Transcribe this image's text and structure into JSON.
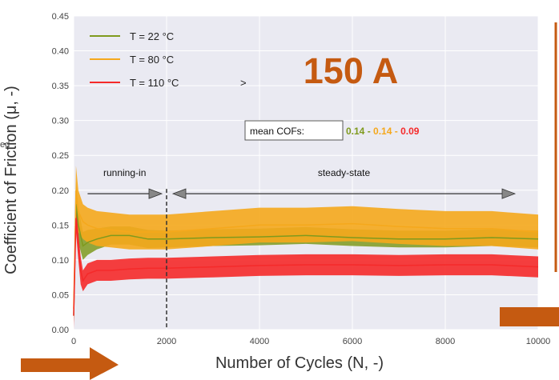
{
  "chart_data": {
    "type": "line",
    "title": "150 A",
    "xlabel": "Number of Cycles (N, -)",
    "ylabel": "Coefficient of Friction (μ, -)",
    "ylabel_fragment": "ed",
    "xlim": [
      0,
      10000
    ],
    "ylim": [
      0,
      0.45
    ],
    "x_ticks": [
      0,
      2000,
      4000,
      6000,
      8000,
      10000
    ],
    "x_tick_labels": [
      "0",
      "2000",
      "4000",
      "6000",
      "8000",
      "10000"
    ],
    "y_ticks": [
      0,
      0.05,
      0.1,
      0.15,
      0.2,
      0.25,
      0.3,
      0.35,
      0.4,
      0.45
    ],
    "y_tick_labels": [
      "0.00",
      "0.05",
      "0.10",
      "0.15",
      "0.20",
      "0.25",
      "0.30",
      "0.35",
      "0.40",
      "0.45"
    ],
    "grid": true,
    "legend_position": "top-left",
    "series": [
      {
        "name": "T = 22 °C",
        "color": "#7f9a1e",
        "x": [
          0,
          50,
          100,
          200,
          300,
          500,
          800,
          1200,
          1600,
          2000,
          3000,
          4000,
          5000,
          6000,
          7000,
          8000,
          9000,
          10000
        ],
        "y": [
          0.02,
          0.18,
          0.15,
          0.12,
          0.125,
          0.13,
          0.135,
          0.135,
          0.13,
          0.13,
          0.132,
          0.133,
          0.135,
          0.132,
          0.13,
          0.13,
          0.132,
          0.13
        ],
        "band": [
          0.01,
          0.03,
          0.025,
          0.02,
          0.018,
          0.015,
          0.013,
          0.013,
          0.013,
          0.012,
          0.012,
          0.012,
          0.012,
          0.012,
          0.012,
          0.012,
          0.012,
          0.012
        ]
      },
      {
        "name": "T = 80 °C",
        "color": "#f5a81c",
        "x": [
          0,
          50,
          100,
          200,
          300,
          500,
          800,
          1200,
          1600,
          2000,
          3000,
          4000,
          5000,
          6000,
          7000,
          8000,
          9000,
          10000
        ],
        "y": [
          0.03,
          0.2,
          0.17,
          0.155,
          0.15,
          0.145,
          0.143,
          0.14,
          0.14,
          0.14,
          0.145,
          0.15,
          0.15,
          0.152,
          0.148,
          0.145,
          0.145,
          0.14
        ],
        "band": [
          0.02,
          0.035,
          0.03,
          0.025,
          0.025,
          0.025,
          0.025,
          0.025,
          0.025,
          0.025,
          0.025,
          0.025,
          0.025,
          0.025,
          0.025,
          0.025,
          0.025,
          0.025
        ]
      },
      {
        "name": "T = 110 °C",
        "color": "#f52a2a",
        "x": [
          0,
          50,
          100,
          150,
          200,
          300,
          500,
          800,
          1200,
          1600,
          2000,
          3000,
          4000,
          5000,
          6000,
          7000,
          8000,
          9000,
          10000
        ],
        "y": [
          0.02,
          0.16,
          0.12,
          0.085,
          0.07,
          0.08,
          0.085,
          0.085,
          0.087,
          0.088,
          0.088,
          0.09,
          0.092,
          0.093,
          0.093,
          0.092,
          0.093,
          0.093,
          0.09
        ],
        "band": [
          0.02,
          0.02,
          0.02,
          0.02,
          0.015,
          0.015,
          0.015,
          0.015,
          0.015,
          0.015,
          0.015,
          0.015,
          0.015,
          0.015,
          0.015,
          0.015,
          0.015,
          0.015,
          0.015
        ]
      }
    ],
    "annotations": {
      "mean_cof_label": "mean COFs:",
      "mean_cof_values": [
        "0.14",
        "0.14",
        "0.09"
      ],
      "mean_cof_separator": " - ",
      "running_in": "running-in",
      "steady_state": "steady-state",
      "phase_boundary_x": 2000,
      "running_in_range": [
        300,
        2000
      ],
      "steady_state_range": [
        2000,
        9500
      ],
      "phase_arrow_y": 0.195,
      "legend_stray_mark": ">"
    },
    "accent_color": "#c55a11"
  }
}
